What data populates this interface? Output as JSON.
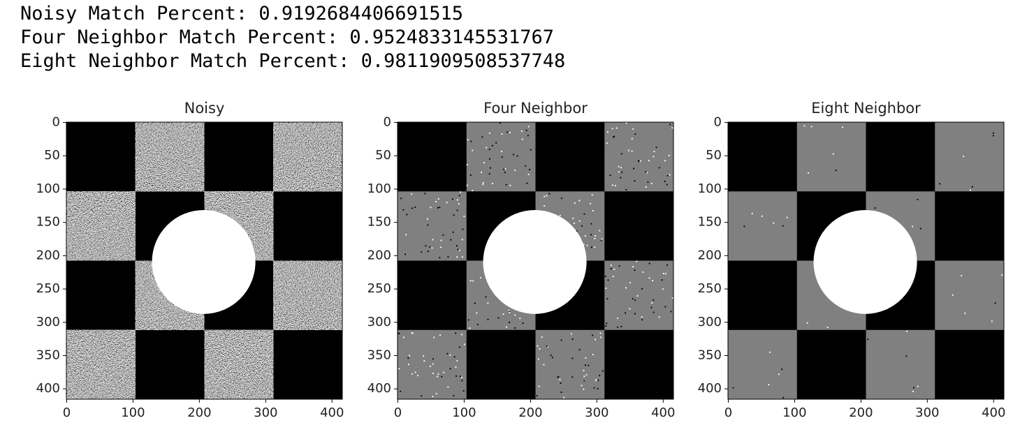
{
  "output_lines": [
    "Noisy Match Percent:  0.9192684406691515",
    "Four Neighbor Match Percent:  0.9524833145531767",
    "Eight Neighbor Match Percent:  0.9811909508537748"
  ],
  "figures": [
    {
      "title": "Noisy",
      "xlim": [
        -0.5,
        415.5
      ],
      "ylim": [
        415.5,
        -0.5
      ],
      "xticks": [
        0,
        100,
        200,
        300,
        400
      ],
      "yticks": [
        0,
        50,
        100,
        150,
        200,
        250,
        300,
        350,
        400
      ]
    },
    {
      "title": "Four Neighbor",
      "xlim": [
        -0.5,
        415.5
      ],
      "ylim": [
        415.5,
        -0.5
      ],
      "xticks": [
        0,
        100,
        200,
        300,
        400
      ],
      "yticks": [
        0,
        50,
        100,
        150,
        200,
        250,
        300,
        350,
        400
      ]
    },
    {
      "title": "Eight Neighbor",
      "xlim": [
        -0.5,
        415.5
      ],
      "ylim": [
        415.5,
        -0.5
      ],
      "xticks": [
        0,
        100,
        200,
        300,
        400
      ],
      "yticks": [
        0,
        50,
        100,
        150,
        200,
        250,
        300,
        350,
        400
      ]
    }
  ]
}
